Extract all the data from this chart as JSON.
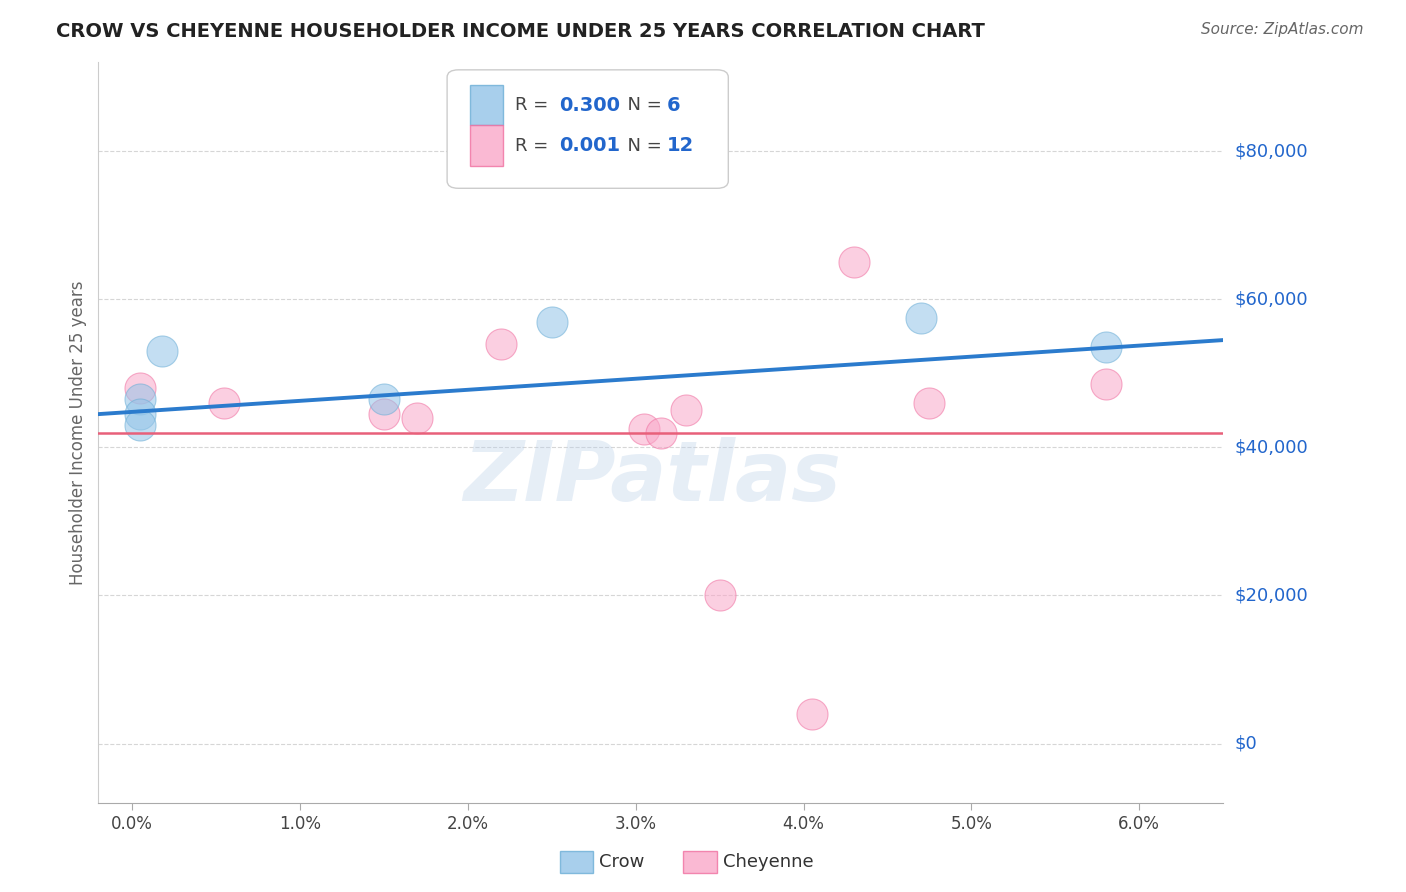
{
  "title": "CROW VS CHEYENNE HOUSEHOLDER INCOME UNDER 25 YEARS CORRELATION CHART",
  "source": "Source: ZipAtlas.com",
  "ylabel": "Householder Income Under 25 years",
  "xlabel_ticks": [
    "0.0%",
    "1.0%",
    "2.0%",
    "3.0%",
    "4.0%",
    "5.0%",
    "6.0%"
  ],
  "xlabel_vals": [
    0.0,
    1.0,
    2.0,
    3.0,
    4.0,
    5.0,
    6.0
  ],
  "ylabel_vals": [
    0,
    20000,
    40000,
    60000,
    80000
  ],
  "ylabel_labels": [
    "$0",
    "$20,000",
    "$40,000",
    "$60,000",
    "$80,000"
  ],
  "ylim": [
    -8000,
    92000
  ],
  "xlim": [
    -0.2,
    6.5
  ],
  "crow_color": "#93c4e8",
  "cheyenne_color": "#f9a8c9",
  "crow_edge_color": "#6baed6",
  "cheyenne_edge_color": "#f06fa0",
  "crow_line_color": "#2b7bcd",
  "cheyenne_line_color": "#e8607a",
  "crow_points": [
    [
      0.05,
      46500
    ],
    [
      0.05,
      44500
    ],
    [
      0.05,
      43000
    ],
    [
      0.18,
      53000
    ],
    [
      1.5,
      46500
    ],
    [
      2.5,
      57000
    ],
    [
      4.7,
      57500
    ],
    [
      5.8,
      53500
    ]
  ],
  "cheyenne_points": [
    [
      0.05,
      48000
    ],
    [
      0.55,
      46000
    ],
    [
      1.5,
      44500
    ],
    [
      1.7,
      44000
    ],
    [
      2.2,
      54000
    ],
    [
      3.05,
      42500
    ],
    [
      3.15,
      42000
    ],
    [
      3.3,
      45000
    ],
    [
      4.3,
      65000
    ],
    [
      4.75,
      46000
    ],
    [
      5.8,
      48500
    ],
    [
      3.5,
      20000
    ],
    [
      4.05,
      4000
    ]
  ],
  "crow_trend_x": [
    -0.2,
    6.5
  ],
  "crow_trend_y": [
    44500,
    54500
  ],
  "cheyenne_trend_y": 42000,
  "watermark": "ZIPatlas",
  "background_color": "#ffffff",
  "grid_color": "#cccccc",
  "right_label_color": "#2266cc"
}
